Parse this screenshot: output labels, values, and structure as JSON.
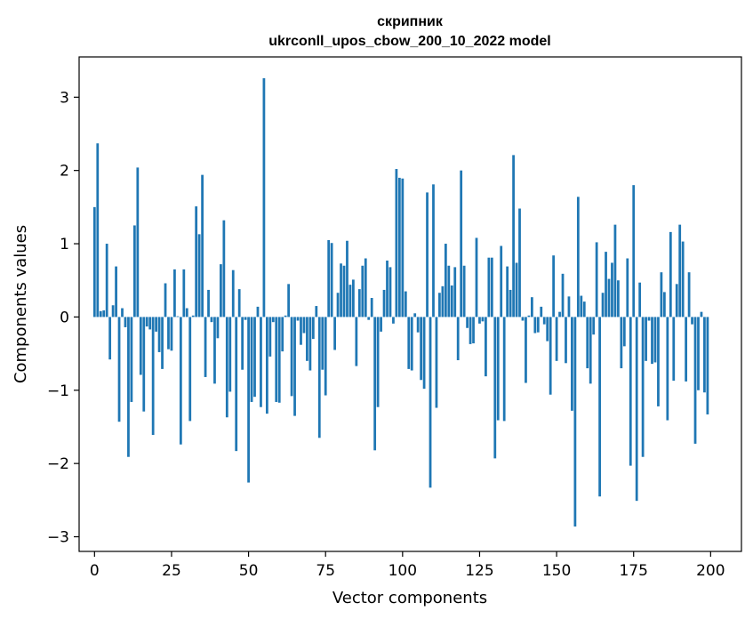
{
  "chart_data": {
    "type": "bar",
    "title": "скрипник",
    "subtitle": "ukrconll_upos_cbow_200_10_2022 model",
    "xlabel": "Vector components",
    "ylabel": "Components values",
    "xlim": [
      -5,
      210
    ],
    "ylim": [
      -3.2,
      3.55
    ],
    "xticks": [
      0,
      25,
      50,
      75,
      100,
      125,
      150,
      175,
      200
    ],
    "yticks": [
      -3,
      -2,
      -1,
      0,
      1,
      2,
      3
    ],
    "grid": false,
    "bar_color": "#1f77b4",
    "x": [
      0,
      1,
      2,
      3,
      4,
      5,
      6,
      7,
      8,
      9,
      10,
      11,
      12,
      13,
      14,
      15,
      16,
      17,
      18,
      19,
      20,
      21,
      22,
      23,
      24,
      25,
      26,
      27,
      28,
      29,
      30,
      31,
      32,
      33,
      34,
      35,
      36,
      37,
      38,
      39,
      40,
      41,
      42,
      43,
      44,
      45,
      46,
      47,
      48,
      49,
      50,
      51,
      52,
      53,
      54,
      55,
      56,
      57,
      58,
      59,
      60,
      61,
      62,
      63,
      64,
      65,
      66,
      67,
      68,
      69,
      70,
      71,
      72,
      73,
      74,
      75,
      76,
      77,
      78,
      79,
      80,
      81,
      82,
      83,
      84,
      85,
      86,
      87,
      88,
      89,
      90,
      91,
      92,
      93,
      94,
      95,
      96,
      97,
      98,
      99,
      100,
      101,
      102,
      103,
      104,
      105,
      106,
      107,
      108,
      109,
      110,
      111,
      112,
      113,
      114,
      115,
      116,
      117,
      118,
      119,
      120,
      121,
      122,
      123,
      124,
      125,
      126,
      127,
      128,
      129,
      130,
      131,
      132,
      133,
      134,
      135,
      136,
      137,
      138,
      139,
      140,
      141,
      142,
      143,
      144,
      145,
      146,
      147,
      148,
      149,
      150,
      151,
      152,
      153,
      154,
      155,
      156,
      157,
      158,
      159,
      160,
      161,
      162,
      163,
      164,
      165,
      166,
      167,
      168,
      169,
      170,
      171,
      172,
      173,
      174,
      175,
      176,
      177,
      178,
      179,
      180,
      181,
      182,
      183,
      184,
      185,
      186,
      187,
      188,
      189,
      190,
      191,
      192,
      193,
      194,
      195,
      196,
      197,
      198,
      199
    ],
    "values": [
      1.5,
      2.37,
      0.08,
      0.09,
      1.0,
      -0.58,
      0.16,
      0.69,
      -1.43,
      0.12,
      -0.14,
      -1.91,
      -1.16,
      1.25,
      2.04,
      -0.79,
      -1.29,
      -0.13,
      -0.17,
      -1.61,
      -0.2,
      -0.48,
      -0.71,
      0.46,
      -0.44,
      -0.46,
      0.65,
      0.01,
      -1.74,
      0.65,
      0.12,
      -1.42,
      0.02,
      1.51,
      1.13,
      1.94,
      -0.82,
      0.37,
      -0.07,
      -0.91,
      -0.29,
      0.72,
      1.32,
      -1.37,
      -1.02,
      0.64,
      -1.83,
      0.38,
      -0.72,
      -0.04,
      -2.26,
      -1.16,
      -1.09,
      0.14,
      -1.23,
      3.26,
      -1.32,
      -0.54,
      -0.07,
      -1.16,
      -1.17,
      -0.47,
      0.02,
      0.45,
      -1.08,
      -1.35,
      -0.05,
      -0.38,
      -0.22,
      -0.6,
      -0.73,
      -0.3,
      0.15,
      -1.65,
      -0.72,
      -1.07,
      1.05,
      1.01,
      -0.45,
      0.33,
      0.73,
      0.7,
      1.04,
      0.44,
      0.51,
      -0.67,
      0.38,
      0.7,
      0.8,
      -0.04,
      0.26,
      -1.82,
      -1.23,
      -0.2,
      0.37,
      0.77,
      0.68,
      -0.09,
      2.02,
      1.9,
      1.89,
      0.35,
      -0.71,
      -0.73,
      0.05,
      -0.21,
      -0.86,
      -0.98,
      1.7,
      -2.33,
      1.81,
      -1.24,
      0.33,
      0.42,
      1.0,
      0.7,
      0.43,
      0.68,
      -0.59,
      2.0,
      0.7,
      -0.15,
      -0.37,
      -0.36,
      1.08,
      -0.09,
      -0.06,
      -0.81,
      0.81,
      0.81,
      -1.93,
      -1.41,
      0.97,
      -1.42,
      0.69,
      0.37,
      2.21,
      0.74,
      1.48,
      -0.05,
      -0.9,
      0.02,
      0.27,
      -0.22,
      -0.21,
      0.14,
      -0.1,
      -0.33,
      -1.06,
      0.84,
      -0.6,
      0.07,
      0.59,
      -0.63,
      0.28,
      -1.28,
      -2.86,
      1.64,
      0.29,
      0.21,
      -0.7,
      -0.91,
      -0.24,
      1.02,
      -2.45,
      0.33,
      0.89,
      0.52,
      0.74,
      1.26,
      0.5,
      -0.7,
      -0.4,
      0.8,
      -2.03,
      1.8,
      -2.51,
      0.47,
      -1.91,
      -0.6,
      -0.05,
      -0.64,
      -0.62,
      -1.22,
      0.61,
      0.34,
      -1.41,
      1.16,
      -0.87,
      0.45,
      1.26,
      1.03,
      -0.88,
      0.61,
      -0.1,
      -1.73,
      -1.0,
      0.07,
      -1.03,
      -1.33
    ]
  }
}
